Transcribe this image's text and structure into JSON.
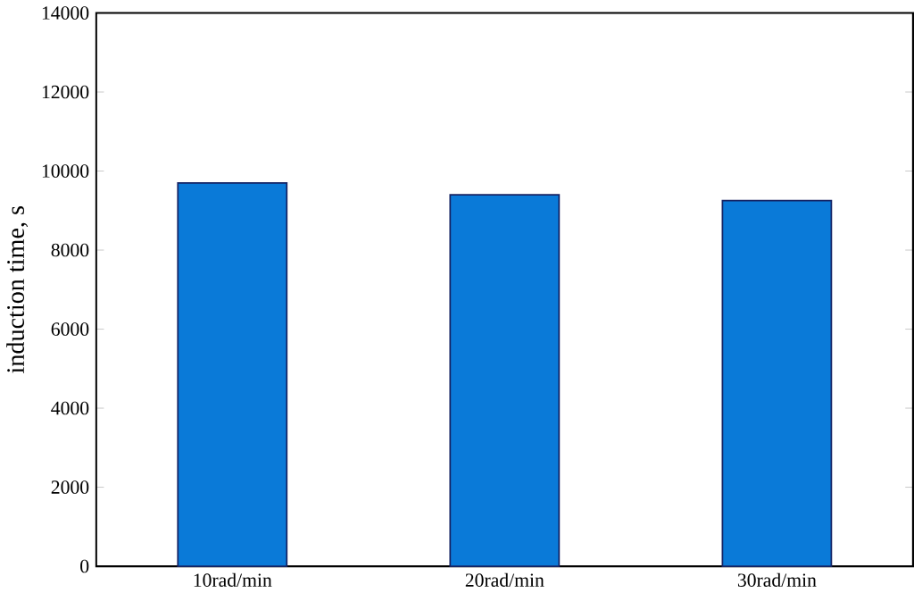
{
  "chart_data": {
    "type": "bar",
    "ylabel": "induction time, s",
    "categories": [
      "10rad/min",
      "20rad/min",
      "30rad/min"
    ],
    "values": [
      9700,
      9400,
      9250
    ],
    "color": "#0a7ad8",
    "ylim": [
      0,
      14000
    ],
    "yticks": [
      0,
      2000,
      4000,
      6000,
      8000,
      10000,
      12000,
      14000
    ],
    "grid": false
  }
}
